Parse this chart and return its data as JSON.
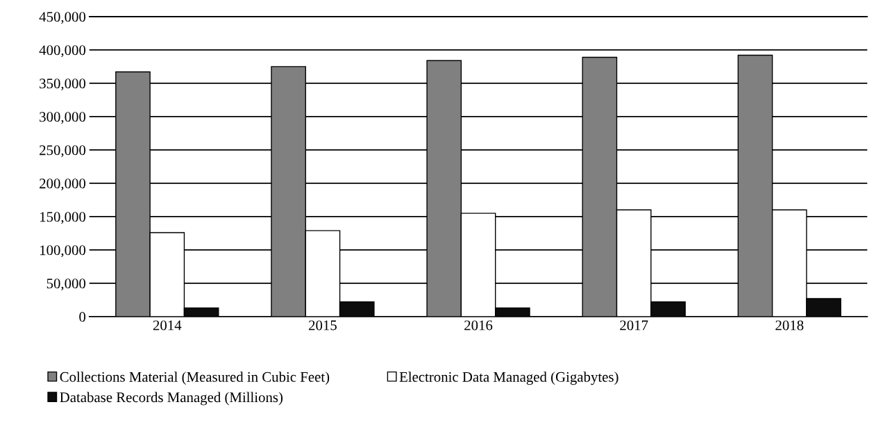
{
  "chart_data": {
    "type": "bar",
    "categories": [
      "2014",
      "2015",
      "2016",
      "2017",
      "2018"
    ],
    "series": [
      {
        "name": "Collections Material (Measured in Cubic Feet)",
        "color": "#808080",
        "values": [
          367000,
          375000,
          384000,
          389000,
          392000
        ]
      },
      {
        "name": "Electronic Data Managed (Gigabytes)",
        "color": "#ffffff",
        "values": [
          126000,
          129000,
          155000,
          160000,
          160000
        ]
      },
      {
        "name": "Database Records Managed (Millions)",
        "color": "#0d0d0d",
        "values": [
          13000,
          22000,
          13000,
          22000,
          27000
        ]
      }
    ],
    "ylim": [
      0,
      450000
    ],
    "yticks": [
      {
        "value": 0,
        "label": "0"
      },
      {
        "value": 50000,
        "label": "50,000"
      },
      {
        "value": 100000,
        "label": "100,000"
      },
      {
        "value": 150000,
        "label": "150,000"
      },
      {
        "value": 200000,
        "label": "200,000"
      },
      {
        "value": 250000,
        "label": "250,000"
      },
      {
        "value": 300000,
        "label": "300,000"
      },
      {
        "value": 350000,
        "label": "350,000"
      },
      {
        "value": 400000,
        "label": "400,000"
      },
      {
        "value": 450000,
        "label": "450,000"
      }
    ],
    "grid": "y",
    "legend": "bottom"
  }
}
